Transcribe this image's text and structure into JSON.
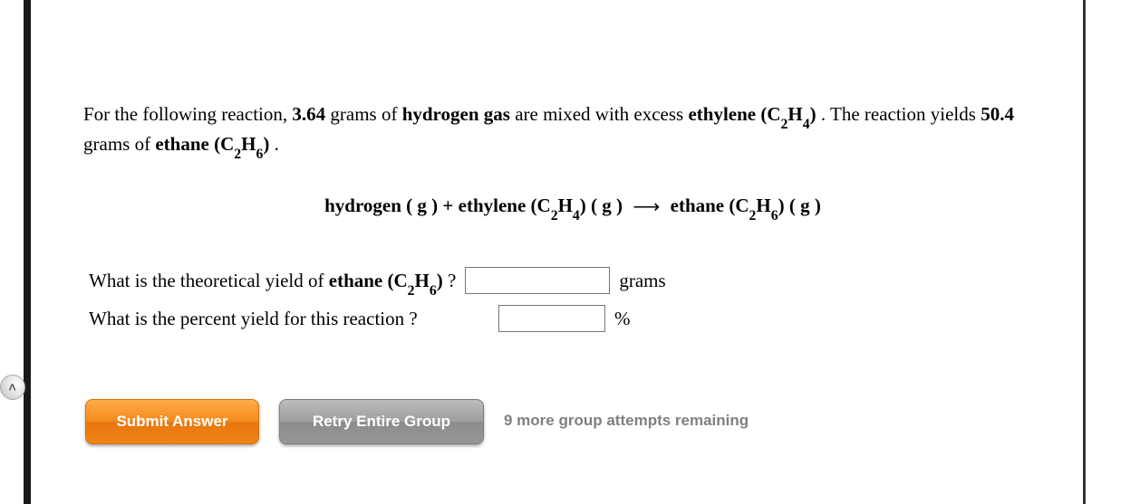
{
  "problem": {
    "intro_prefix": "For the following reaction, ",
    "mass_h2": "3.64",
    "intro_mid1": " grams of ",
    "reagent_h2": "hydrogen gas",
    "intro_mid2": " are mixed with excess ",
    "reagent_ethylene_html": "ethylene (C<sub>2</sub>H<sub>4</sub>)",
    "intro_mid3": " . The reaction yields ",
    "mass_product": "50.4",
    "intro_mid4": " grams of ",
    "product_ethane_html": "ethane (C<sub>2</sub>H<sub>6</sub>)",
    "intro_end": " ."
  },
  "equation": {
    "lhs1": "hydrogen ( g ) + ethylene (C<sub>2</sub>H<sub>4</sub>) ( g )",
    "arrow": "⟶",
    "rhs": "ethane (C<sub>2</sub>H<sub>6</sub>) ( g )"
  },
  "questions": {
    "q1_prefix": "What is the theoretical yield of ",
    "q1_bold_html": "ethane (C<sub>2</sub>H<sub>6</sub>)",
    "q1_suffix": " ?",
    "q1_unit": "grams",
    "q1_value": "",
    "q2_text": "What is the percent yield for this reaction ?",
    "q2_unit": "%",
    "q2_value": ""
  },
  "buttons": {
    "submit": "Submit Answer",
    "retry": "Retry Entire Group",
    "attempts": "9 more group attempts remaining"
  },
  "expand_glyph": "<"
}
